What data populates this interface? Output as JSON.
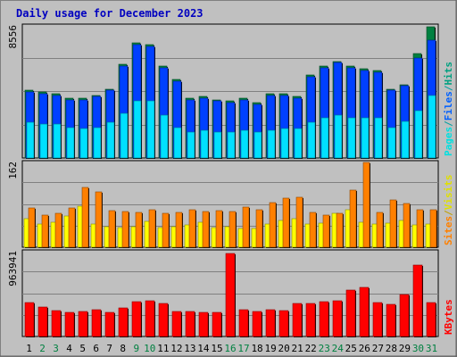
{
  "chart_data": {
    "type": "bar",
    "title": "Daily usage for December 2023",
    "days": [
      "1",
      "2",
      "3",
      "4",
      "5",
      "6",
      "7",
      "8",
      "9",
      "10",
      "11",
      "12",
      "13",
      "14",
      "15",
      "16",
      "17",
      "18",
      "19",
      "20",
      "21",
      "22",
      "23",
      "24",
      "25",
      "26",
      "27",
      "28",
      "29",
      "30",
      "31"
    ],
    "weekend_days": [
      2,
      3,
      9,
      10,
      16,
      17,
      23,
      24,
      30,
      31
    ],
    "panels": [
      {
        "id": "hits",
        "max_label": "8556",
        "ymax": 8556,
        "series": [
          {
            "name": "Hits",
            "color": "#008040",
            "values": [
              4400,
              4300,
              4200,
              3900,
              3900,
              4100,
              4500,
              6100,
              7500,
              7400,
              6000,
              5100,
              3900,
              4000,
              3800,
              3700,
              3900,
              3600,
              4200,
              4200,
              4000,
              5400,
              6000,
              6300,
              6000,
              5800,
              5700,
              4500,
              4800,
              6800,
              8556
            ]
          },
          {
            "name": "Files",
            "color": "#0040ff",
            "values": [
              4300,
              4200,
              4100,
              3800,
              3800,
              4000,
              4400,
              6000,
              7400,
              7300,
              5900,
              5000,
              3800,
              3900,
              3700,
              3600,
              3800,
              3500,
              4100,
              4100,
              3900,
              5300,
              5900,
              6200,
              5900,
              5700,
              5600,
              4400,
              4700,
              6500,
              7700
            ]
          },
          {
            "name": "Pages",
            "color": "#00e0ff",
            "values": [
              2300,
              2200,
              2200,
              2000,
              1900,
              2000,
              2300,
              2900,
              3700,
              3700,
              2800,
              2000,
              1700,
              1800,
              1700,
              1700,
              1800,
              1700,
              1800,
              1900,
              1900,
              2300,
              2600,
              2800,
              2600,
              2600,
              2600,
              2000,
              2400,
              3100,
              4100
            ]
          }
        ]
      },
      {
        "id": "visits",
        "max_label": "162",
        "ymax": 162,
        "series": [
          {
            "name": "Visits",
            "color": "#ffff00",
            "values": [
              55,
              45,
              48,
              60,
              80,
              45,
              40,
              38,
              40,
              50,
              38,
              39,
              43,
              48,
              38,
              40,
              37,
              36,
              44,
              52,
              56,
              44,
              46,
              66,
              73,
              48,
              44,
              46,
              52,
              43,
              45
            ]
          },
          {
            "name": "Sites",
            "color": "#ff8000",
            "values": [
              76,
              62,
              66,
              76,
              115,
              106,
              70,
              69,
              67,
              72,
              65,
              67,
              72,
              69,
              70,
              69,
              77,
              73,
              86,
              95,
              96,
              67,
              62,
              66,
              111,
              163,
              68,
              92,
              85,
              73,
              72
            ]
          }
        ]
      },
      {
        "id": "kbytes",
        "max_label": "963941",
        "ymax": 963941,
        "series": [
          {
            "name": "KBytes",
            "color": "#ff0000",
            "values": [
              390000,
              340000,
              300000,
              280000,
              290000,
              310000,
              280000,
              330000,
              400000,
              410000,
              380000,
              290000,
              290000,
              280000,
              280000,
              950000,
              310000,
              290000,
              310000,
              300000,
              380000,
              380000,
              400000,
              410000,
              530000,
              560000,
              390000,
              370000,
              480000,
              820000,
              390000
            ]
          }
        ]
      }
    ],
    "legend_right": [
      {
        "panel": "hits",
        "items": [
          {
            "label": "Pages",
            "color": "#00e0e0"
          },
          {
            "label": "/",
            "color": "#00a0a0"
          },
          {
            "label": "Files",
            "color": "#0060ff"
          },
          {
            "label": "/",
            "color": "#00a0a0"
          },
          {
            "label": "Hits",
            "color": "#00a080"
          }
        ]
      },
      {
        "panel": "visits",
        "items": [
          {
            "label": "Sites",
            "color": "#ff8000"
          },
          {
            "label": "/",
            "color": "#c0a000"
          },
          {
            "label": "Visits",
            "color": "#e0e000"
          }
        ]
      },
      {
        "panel": "kbytes",
        "items": [
          {
            "label": "KBytes",
            "color": "#ff0000"
          }
        ]
      }
    ],
    "colors": {
      "page_bg": "#c0c0c0",
      "plot_bg": "#c0c0c0",
      "grid": "#808080",
      "title": "#0000c0",
      "day_weekday": "#000000",
      "day_weekend": "#008040"
    }
  }
}
